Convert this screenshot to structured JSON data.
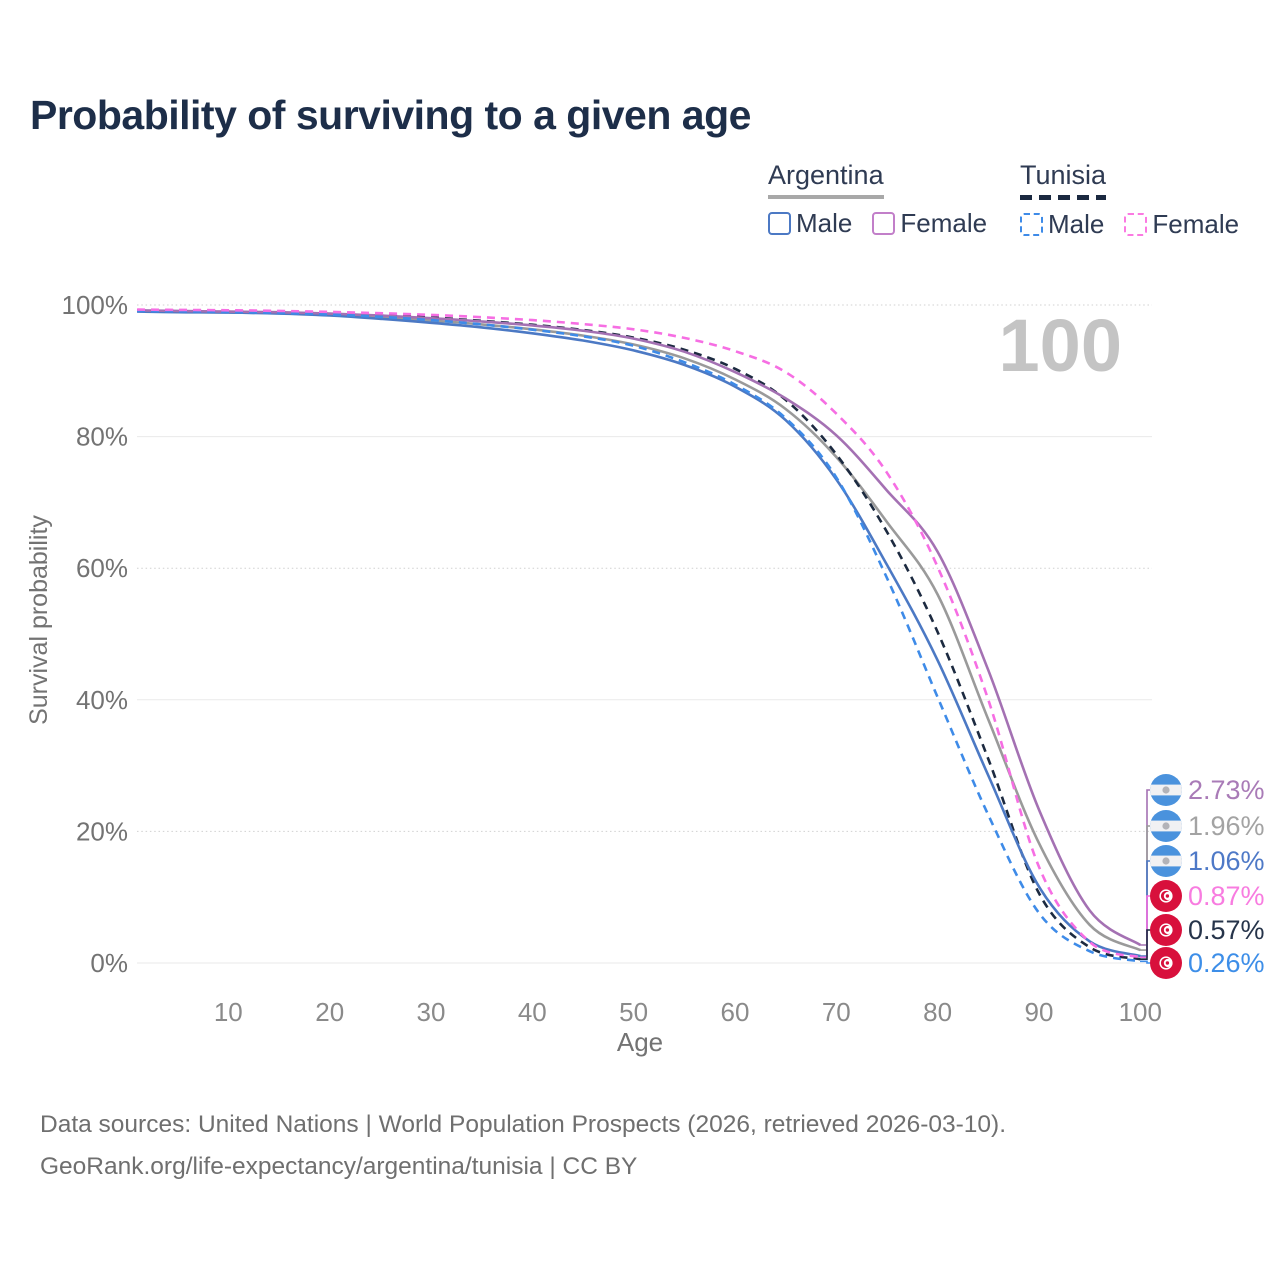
{
  "title": "Probability of surviving to a given age",
  "legend": {
    "groups": [
      {
        "label": "Argentina",
        "underline_style": "solid",
        "underline_color": "#a8a8a8",
        "items": [
          {
            "label": "Male",
            "color": "#4c79c4",
            "dash": false
          },
          {
            "label": "Female",
            "color": "#c27fc9",
            "dash": false
          }
        ]
      },
      {
        "label": "Tunisia",
        "underline_style": "dashed",
        "underline_color": "#1b2940",
        "items": [
          {
            "label": "Male",
            "color": "#3e8be8",
            "dash": true
          },
          {
            "label": "Female",
            "color": "#fb7ae2",
            "dash": true
          }
        ]
      }
    ]
  },
  "chart_data": {
    "type": "line",
    "title": "Probability of surviving to a given age",
    "xlabel": "Age",
    "ylabel": "Survival probability",
    "x_ticks": [
      10,
      20,
      30,
      40,
      50,
      60,
      70,
      80,
      90,
      100
    ],
    "y_ticks": [
      0,
      20,
      40,
      60,
      80,
      100
    ],
    "y_tick_suffix": "%",
    "xlim": [
      0,
      100
    ],
    "ylim": [
      0,
      100
    ],
    "grid": "horizontal",
    "age_indicator": "100",
    "ages": [
      1,
      5,
      10,
      15,
      20,
      25,
      30,
      35,
      40,
      45,
      50,
      55,
      60,
      65,
      70,
      75,
      80,
      85,
      90,
      95,
      100
    ],
    "series": [
      {
        "id": "argentina_both",
        "name": "Argentina — both sexes",
        "country": "Argentina",
        "color": "#9a9a9a",
        "dash": false,
        "end_value_pct": 1.96,
        "values": [
          99.1,
          99.0,
          98.9,
          98.8,
          98.55,
          98.15,
          97.65,
          97.05,
          96.3,
          95.35,
          94.0,
          91.9,
          88.7,
          84.2,
          76.9,
          67.0,
          56.0,
          37.0,
          18.2,
          5.8,
          1.96
        ]
      },
      {
        "id": "tunisia_both",
        "name": "Tunisia — both sexes",
        "country": "Tunisia",
        "color": "#1c2a40",
        "dash": true,
        "end_value_pct": 0.57,
        "values": [
          99.2,
          99.15,
          99.05,
          98.95,
          98.75,
          98.5,
          98.1,
          97.6,
          97.0,
          96.2,
          95.05,
          93.2,
          90.3,
          85.6,
          77.3,
          65.5,
          50.3,
          31.0,
          10.6,
          2.4,
          0.57
        ]
      },
      {
        "id": "argentina_male",
        "name": "Argentina — Male",
        "country": "Argentina",
        "color": "#4c79c4",
        "dash": false,
        "end_value_pct": 1.06,
        "values": [
          99.0,
          98.9,
          98.85,
          98.7,
          98.4,
          97.9,
          97.3,
          96.6,
          95.7,
          94.6,
          93.1,
          90.9,
          87.6,
          82.5,
          73.5,
          60.5,
          46.0,
          28.5,
          11.6,
          3.3,
          1.06
        ]
      },
      {
        "id": "argentina_female",
        "name": "Argentina — Female",
        "country": "Argentina",
        "color": "#a471b3",
        "dash": false,
        "end_value_pct": 2.73,
        "values": [
          99.2,
          99.1,
          99.0,
          98.9,
          98.7,
          98.4,
          98.0,
          97.5,
          96.9,
          96.1,
          94.9,
          92.9,
          89.8,
          85.8,
          80.2,
          71.8,
          62.5,
          44.5,
          23.3,
          8.0,
          2.73
        ]
      },
      {
        "id": "tunisia_male",
        "name": "Tunisia — Male",
        "country": "Tunisia",
        "color": "#3e8be8",
        "dash": true,
        "end_value_pct": 0.26,
        "values": [
          99.1,
          99.05,
          98.95,
          98.8,
          98.55,
          98.2,
          97.7,
          97.05,
          96.25,
          95.25,
          93.8,
          91.3,
          87.9,
          82.8,
          73.8,
          58.5,
          40.4,
          22.5,
          7.6,
          1.8,
          0.26
        ]
      },
      {
        "id": "tunisia_female",
        "name": "Tunisia — Female",
        "country": "Tunisia",
        "color": "#f66ee3",
        "dash": true,
        "end_value_pct": 0.87,
        "values": [
          99.3,
          99.25,
          99.2,
          99.1,
          98.95,
          98.75,
          98.5,
          98.15,
          97.7,
          97.1,
          96.3,
          95.0,
          93.0,
          89.8,
          83.5,
          74.5,
          60.2,
          40.0,
          14.6,
          3.2,
          0.87
        ]
      }
    ],
    "end_labels": [
      {
        "value": "2.73%",
        "series": "argentina_female",
        "flag": "argentina",
        "text_color": "#a97bb7"
      },
      {
        "value": "1.96%",
        "series": "argentina_both",
        "flag": "argentina",
        "text_color": "#a3a3a3"
      },
      {
        "value": "1.06%",
        "series": "argentina_male",
        "flag": "argentina",
        "text_color": "#4e79c7"
      },
      {
        "value": "0.87%",
        "series": "tunisia_female",
        "flag": "tunisia",
        "text_color": "#f87ce0"
      },
      {
        "value": "0.57%",
        "series": "tunisia_both",
        "flag": "tunisia",
        "text_color": "#26344a"
      },
      {
        "value": "0.26%",
        "series": "tunisia_male",
        "flag": "tunisia",
        "text_color": "#3d8ee8"
      }
    ],
    "flag_colors": {
      "argentina_blue": "#4a92dd",
      "argentina_white": "#f1f1f3",
      "argentina_sun": "#b3b3b8",
      "tunisia_red": "#d8103c",
      "tunisia_white": "#ffffff"
    }
  },
  "footer": {
    "line1": "Data sources: United Nations | World Population Prospects (2026, retrieved 2026-03-10).",
    "line2": "GeoRank.org/life-expectancy/argentina/tunisia | CC BY"
  }
}
